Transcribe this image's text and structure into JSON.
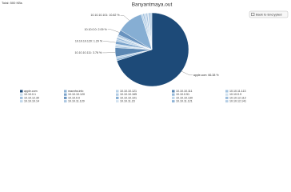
{
  "header_text": "Total: 500 KBs",
  "button_label": "Back to Encrypted",
  "chart_data": {
    "type": "pie",
    "title": "Banyantmaya.out",
    "categories": [
      "apple.com",
      "macnhs.info",
      "10.10.10.121",
      "10.10.10.111",
      "10.10.11.113",
      "10.10.0.1",
      "10.10.10.120",
      "10.10.10.165",
      "10.10.0.51",
      "10.10.0.9",
      "10.10.12.30",
      "10.10.0.0",
      "10.10.10.101",
      "10.10.10.130",
      "10.10.12.112",
      "10.10.10.14",
      "10.10.11.120",
      "10.10.11.23",
      "10.10.11.121",
      "10.10.12.141"
    ],
    "values": [
      66.38,
      0.9,
      0.8,
      3.76,
      0.7,
      0.8,
      1.29,
      0.7,
      0.7,
      0.6,
      0.7,
      2.09,
      10.82,
      0.7,
      0.6,
      0.7,
      0.7,
      0.6,
      0.6,
      0.6
    ],
    "value_labels": [
      "apple.com: 66.38 %",
      null,
      null,
      "10.10.10.111: 3.76 %",
      null,
      null,
      "10.10.10.120: 1.29 %",
      null,
      null,
      null,
      null,
      "10.10.0.0: 2.09 %",
      "10.10.10.101: 10.82 %",
      null,
      null,
      null,
      null,
      null,
      null,
      null
    ],
    "colors": [
      "#1d4a78",
      "#8fb4d6",
      "#b7d0e6",
      "#5b87b3",
      "#a4c3df",
      "#c9dcec",
      "#7aa3cb",
      "#b0cbe4",
      "#94b8d9",
      "#cfe0ee",
      "#a0bfdd",
      "#6993bf",
      "#86aed3",
      "#bcd4e8",
      "#9bbcdb",
      "#c3d8eb",
      "#adc8e2",
      "#d4e3f0",
      "#91b5d7",
      "#b5cee5"
    ],
    "legend": "bottom"
  }
}
